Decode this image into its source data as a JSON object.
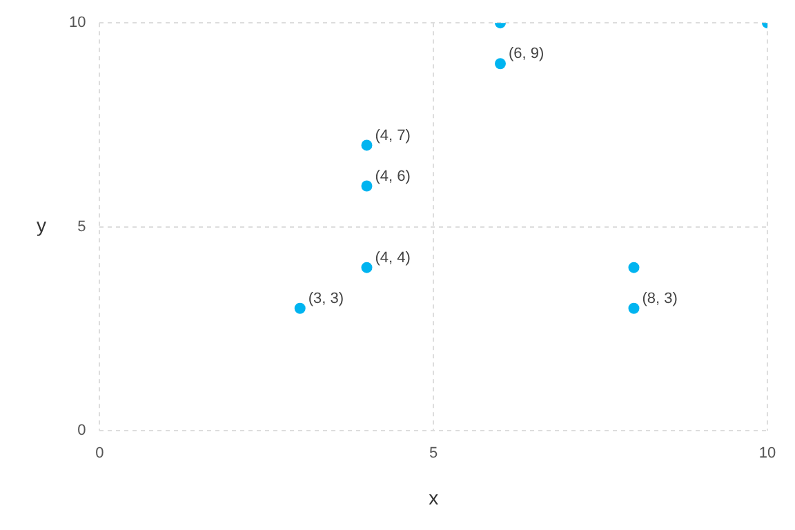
{
  "chart_data": {
    "type": "scatter",
    "xlabel": "x",
    "ylabel": "y",
    "x": [
      3,
      4,
      4,
      4,
      6,
      6,
      8,
      8,
      10
    ],
    "values": [
      3,
      4,
      6,
      7,
      9,
      10,
      3,
      4,
      10
    ],
    "value_labels": [
      "(3, 3)",
      "(4, 4)",
      "(4, 6)",
      "(4, 7)",
      "(6, 9)",
      null,
      "(8, 3)",
      null,
      null
    ],
    "color": "#00b4f0",
    "xlim": [
      0,
      10
    ],
    "ylim": [
      0,
      10
    ],
    "xticks": [
      0,
      5,
      10
    ],
    "yticks": [
      0,
      5,
      10
    ],
    "grid": true,
    "legend": false,
    "marker": "circle"
  }
}
